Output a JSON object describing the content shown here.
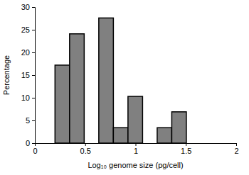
{
  "chart_data": {
    "type": "histogram",
    "x_label": "Log₁₀ genome size (pg/cell)",
    "y_label": "Percentage",
    "bins": [
      0.2,
      0.345,
      0.49,
      0.635,
      0.78,
      0.925,
      1.07,
      1.215,
      1.36,
      1.505
    ],
    "values": [
      17.2,
      24.1,
      0,
      27.6,
      3.4,
      10.3,
      0,
      3.4,
      6.9
    ],
    "color": "#808080",
    "xlim": [
      0,
      2
    ],
    "xticks": [
      0,
      0.5,
      1,
      1.5,
      2
    ],
    "ylim": [
      0,
      30
    ],
    "yticks": [
      0,
      5,
      10,
      15,
      20,
      25,
      30
    ],
    "grid": false
  }
}
